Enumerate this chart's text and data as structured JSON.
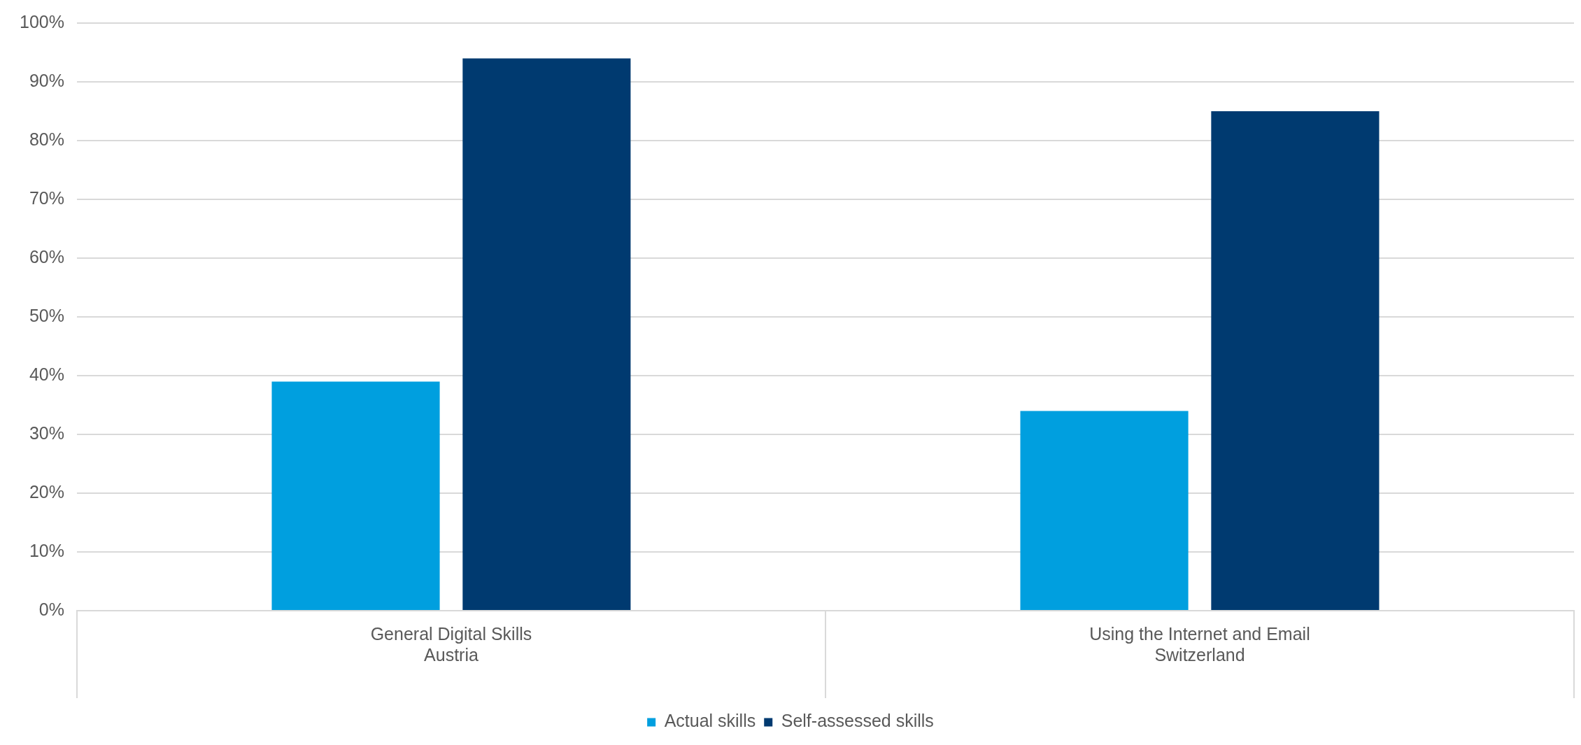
{
  "chart_data": {
    "type": "bar",
    "categories": [
      "General Digital Skills\nAustria",
      "Using the Internet and Email\nSwitzerland"
    ],
    "series": [
      {
        "name": "Actual skills",
        "color": "#009fdf",
        "values": [
          39,
          34
        ]
      },
      {
        "name": "Self-assessed skills",
        "color": "#003a70",
        "values": [
          94,
          85
        ]
      }
    ],
    "ylim": [
      0,
      100
    ],
    "yticks": [
      {
        "value": 0,
        "label": "0%"
      },
      {
        "value": 10,
        "label": "10%"
      },
      {
        "value": 20,
        "label": "20%"
      },
      {
        "value": 30,
        "label": "30%"
      },
      {
        "value": 40,
        "label": "40%"
      },
      {
        "value": 50,
        "label": "50%"
      },
      {
        "value": 60,
        "label": "60%"
      },
      {
        "value": 70,
        "label": "70%"
      },
      {
        "value": 80,
        "label": "80%"
      },
      {
        "value": 90,
        "label": "90%"
      },
      {
        "value": 100,
        "label": "100%"
      }
    ],
    "grid": "y",
    "legend": "bottom"
  }
}
